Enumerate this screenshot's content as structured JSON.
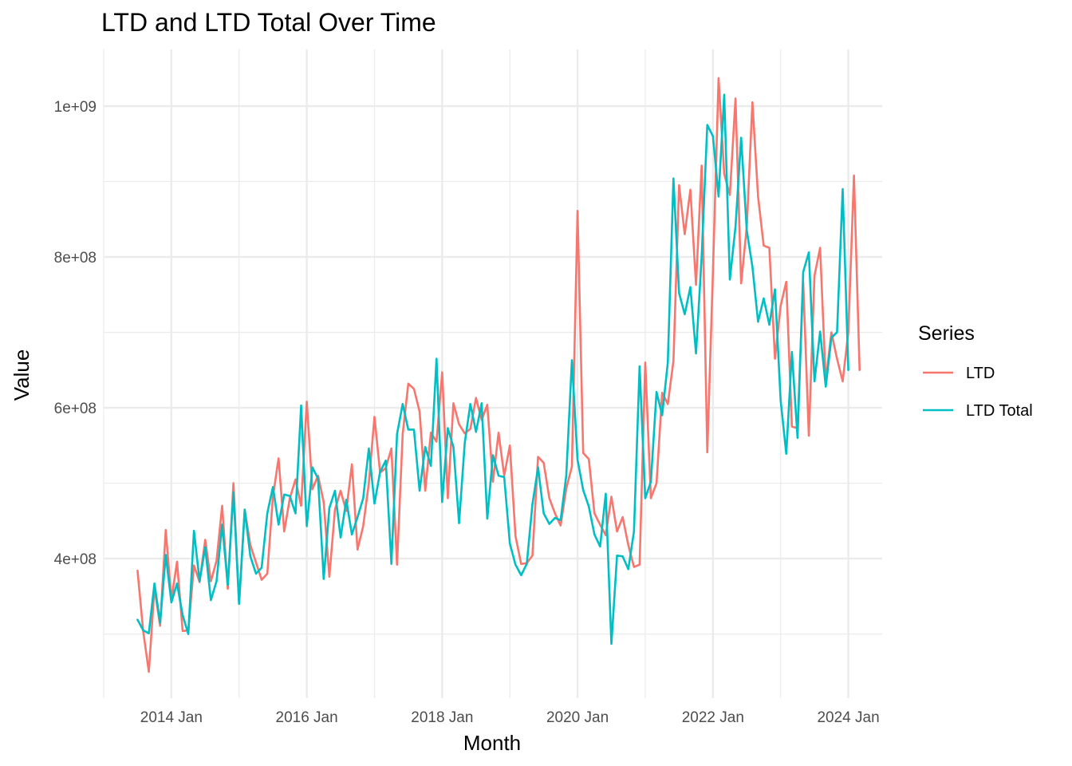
{
  "chart_data": {
    "type": "line",
    "title": "LTD and LTD Total Over Time",
    "xlabel": "Month",
    "ylabel": "Value",
    "x_start": "2013 Jul",
    "x_end": "2024 Jan",
    "xlim": [
      "2013 Jan",
      "2024 Jul"
    ],
    "ylim": [
      215000000,
      1075000000
    ],
    "x_ticks": [
      {
        "label": "2014 Jan",
        "month": "2014-01"
      },
      {
        "label": "2016 Jan",
        "month": "2016-01"
      },
      {
        "label": "2018 Jan",
        "month": "2018-01"
      },
      {
        "label": "2020 Jan",
        "month": "2020-01"
      },
      {
        "label": "2022 Jan",
        "month": "2022-01"
      },
      {
        "label": "2024 Jan",
        "month": "2024-01"
      }
    ],
    "y_ticks": [
      {
        "label": "4e+08",
        "value": 400000000
      },
      {
        "label": "6e+08",
        "value": 600000000
      },
      {
        "label": "8e+08",
        "value": 800000000
      },
      {
        "label": "1e+09",
        "value": 1000000000
      }
    ],
    "grid": true,
    "legend": {
      "title": "Series",
      "position": "right"
    },
    "series": [
      {
        "name": "LTD",
        "color": "#F8766D",
        "values": [
          384,
          304,
          250,
          361,
          311,
          438,
          345,
          396,
          304,
          305,
          391,
          369,
          425,
          370,
          397,
          470,
          360,
          500,
          340,
          465,
          418,
          395,
          372,
          380,
          482,
          533,
          436,
          480,
          505,
          470,
          608,
          492,
          510,
          475,
          376,
          465,
          490,
          463,
          525,
          412,
          443,
          500,
          588,
          514,
          520,
          546,
          392,
          565,
          632,
          625,
          595,
          490,
          567,
          555,
          647,
          480,
          606,
          578,
          566,
          572,
          613,
          584,
          604,
          502,
          567,
          510,
          550,
          430,
          393,
          394,
          404,
          535,
          527,
          480,
          460,
          444,
          493,
          522,
          861,
          540,
          532,
          460,
          445,
          431,
          482,
          436,
          455,
          418,
          389,
          392,
          660,
          480,
          500,
          620,
          605,
          662,
          895,
          830,
          889,
          763,
          921,
          541,
          780,
          1037,
          910,
          882,
          1010,
          765,
          840,
          1005,
          880,
          815,
          812,
          665,
          735,
          767,
          575,
          573,
          767,
          563,
          775,
          812,
          635,
          700,
          665,
          635,
          700,
          908,
          650
        ],
        "total": [
          319,
          305,
          301,
          367,
          315,
          405,
          342,
          367,
          325,
          300,
          437,
          370,
          415,
          345,
          370,
          445,
          365,
          488,
          340,
          465,
          403,
          380,
          388,
          460,
          495,
          445,
          485,
          483,
          460,
          603,
          443,
          521,
          506,
          373,
          467,
          490,
          428,
          478,
          432,
          455,
          480,
          546,
          473,
          515,
          530,
          393,
          565,
          605,
          571,
          571,
          490,
          548,
          523,
          665,
          475,
          573,
          548,
          447,
          553,
          605,
          568,
          606,
          453,
          537,
          510,
          508,
          420,
          392,
          378,
          393,
          472,
          521,
          460,
          446,
          454,
          451,
          510,
          663,
          531,
          491,
          469,
          432,
          416,
          486,
          287,
          404,
          403,
          386,
          436,
          655,
          480,
          502,
          621,
          590,
          660,
          904,
          752,
          724,
          760,
          672,
          800,
          975,
          960,
          880,
          1015,
          770,
          840,
          958,
          835,
          787,
          714,
          745,
          710,
          757,
          610,
          539,
          674,
          560,
          780,
          806,
          635,
          701,
          628,
          693,
          700,
          890,
          650
        ]
      },
      {
        "name": "LTD Total",
        "color": "#00BFC4"
      }
    ]
  }
}
